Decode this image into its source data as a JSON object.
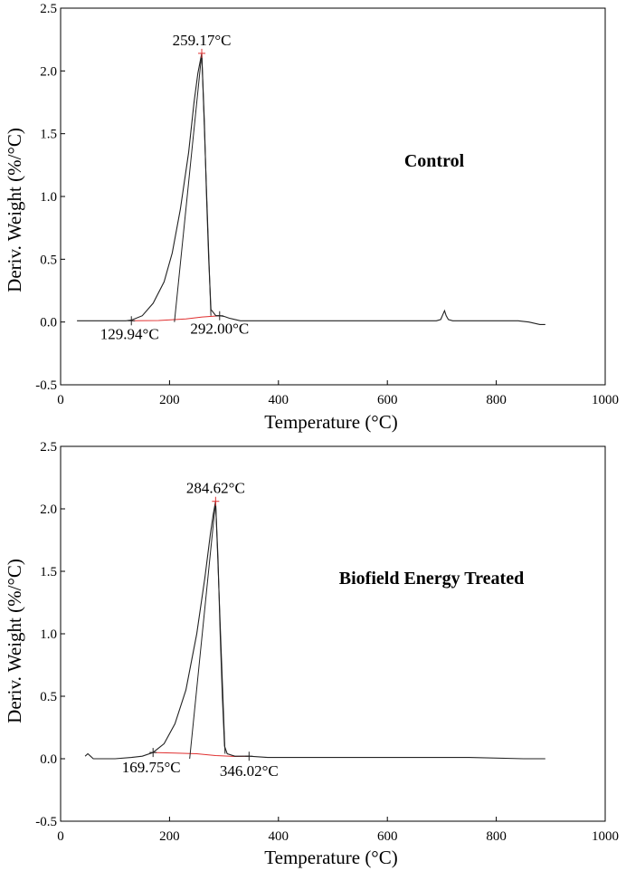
{
  "colors": {
    "curve": "#222222",
    "baseline": "#e03030",
    "frame": "#000000",
    "text": "#000000"
  },
  "chart_data": [
    {
      "type": "line",
      "title": "",
      "label": "Control",
      "xlabel": "Temperature (°C)",
      "ylabel": "Deriv.  Weight (%/°C)",
      "xlim": [
        0,
        1000
      ],
      "ylim": [
        -0.5,
        2.5
      ],
      "xticks": [
        0,
        200,
        400,
        600,
        800,
        1000
      ],
      "yticks": [
        -0.5,
        0.0,
        0.5,
        1.0,
        1.5,
        2.0,
        2.5
      ],
      "xtick_labels": [
        "0",
        "200",
        "400",
        "600",
        "800",
        "1000"
      ],
      "ytick_labels": [
        "-0.5",
        "0.0",
        "0.5",
        "1.0",
        "1.5",
        "2.0",
        "2.5"
      ],
      "grid": false,
      "series": [
        {
          "x": [
            30,
            60,
            100,
            120,
            129.94,
            150,
            170,
            190,
            205,
            220,
            235,
            245,
            252,
            259.17,
            264,
            268,
            272,
            276,
            285,
            292,
            300,
            310,
            330,
            360,
            400,
            450,
            500,
            550,
            600,
            650,
            690,
            698,
            702,
            705,
            708,
            712,
            720,
            760,
            800,
            840,
            860,
            880,
            890
          ],
          "y": [
            0.01,
            0.01,
            0.01,
            0.01,
            0.015,
            0.05,
            0.15,
            0.32,
            0.55,
            0.9,
            1.35,
            1.75,
            1.98,
            2.14,
            1.6,
            1.0,
            0.5,
            0.1,
            0.05,
            0.05,
            0.045,
            0.03,
            0.01,
            0.01,
            0.01,
            0.01,
            0.01,
            0.01,
            0.01,
            0.01,
            0.01,
            0.02,
            0.06,
            0.09,
            0.05,
            0.02,
            0.01,
            0.01,
            0.01,
            0.01,
            0.0,
            -0.02,
            -0.02
          ]
        }
      ],
      "baseline": {
        "x": [
          129.94,
          180,
          230,
          260,
          292.0
        ],
        "y": [
          0.01,
          0.012,
          0.025,
          0.04,
          0.05
        ]
      },
      "tangent_lines": [
        {
          "x": [
            209,
            259.17
          ],
          "y": [
            0.0,
            2.14
          ]
        },
        {
          "x": [
            259.17,
            276
          ],
          "y": [
            2.14,
            0.05
          ]
        }
      ],
      "markers": [
        {
          "x": 129.94,
          "y": 0.01
        },
        {
          "x": 292.0,
          "y": 0.05
        },
        {
          "x": 259.17,
          "y": 2.14
        }
      ],
      "annotations": [
        {
          "text": "259.17°C",
          "x": 259.17,
          "y": 2.14
        },
        {
          "text": "129.94°C",
          "x": 129.94,
          "y": 0.01
        },
        {
          "text": "292.00°C",
          "x": 292.0,
          "y": 0.05
        }
      ]
    },
    {
      "type": "line",
      "title": "",
      "label": "Biofield Energy Treated",
      "xlabel": "Temperature (°C)",
      "ylabel": "Deriv.  Weight (%/°C)",
      "xlim": [
        0,
        1000
      ],
      "ylim": [
        -0.5,
        2.5
      ],
      "xticks": [
        0,
        200,
        400,
        600,
        800,
        1000
      ],
      "yticks": [
        -0.5,
        0.0,
        0.5,
        1.0,
        1.5,
        2.0,
        2.5
      ],
      "xtick_labels": [
        "0",
        "200",
        "400",
        "600",
        "800",
        "1000"
      ],
      "ytick_labels": [
        "-0.5",
        "0.0",
        "0.5",
        "1.0",
        "1.5",
        "2.0",
        "2.5"
      ],
      "grid": false,
      "series": [
        {
          "x": [
            45,
            50,
            55,
            60,
            80,
            100,
            130,
            150,
            169.75,
            190,
            210,
            230,
            250,
            265,
            275,
            280,
            284.62,
            289,
            293,
            297,
            301,
            306,
            320,
            346.02,
            380,
            450,
            550,
            650,
            750,
            850,
            880,
            890
          ],
          "y": [
            0.02,
            0.04,
            0.02,
            0.0,
            0.0,
            0.0,
            0.01,
            0.02,
            0.05,
            0.12,
            0.28,
            0.55,
            1.0,
            1.45,
            1.8,
            1.95,
            2.06,
            1.6,
            1.0,
            0.5,
            0.1,
            0.04,
            0.02,
            0.02,
            0.01,
            0.01,
            0.01,
            0.01,
            0.01,
            0.0,
            0.0,
            0.0
          ]
        }
      ],
      "baseline": {
        "x": [
          169.75,
          210,
          250,
          284.62,
          320,
          346.02
        ],
        "y": [
          0.05,
          0.045,
          0.04,
          0.025,
          0.018,
          0.02
        ]
      },
      "tangent_lines": [
        {
          "x": [
            237,
            284.62
          ],
          "y": [
            0.0,
            2.06
          ]
        },
        {
          "x": [
            284.62,
            302
          ],
          "y": [
            2.06,
            0.04
          ]
        }
      ],
      "markers": [
        {
          "x": 169.75,
          "y": 0.05
        },
        {
          "x": 346.02,
          "y": 0.02
        },
        {
          "x": 284.62,
          "y": 2.06
        }
      ],
      "annotations": [
        {
          "text": "284.62°C",
          "x": 284.62,
          "y": 2.06
        },
        {
          "text": "169.75°C",
          "x": 169.75,
          "y": 0.05
        },
        {
          "text": "346.02°C",
          "x": 346.02,
          "y": 0.02
        }
      ]
    }
  ]
}
